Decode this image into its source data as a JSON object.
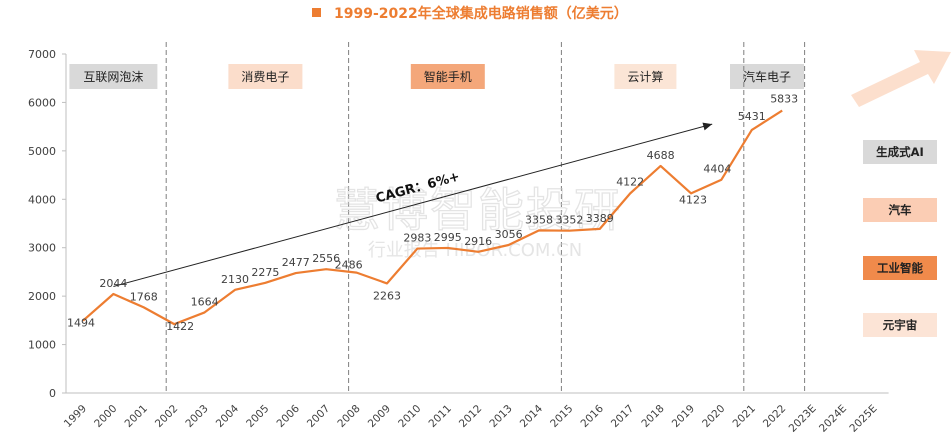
{
  "chart_data": {
    "type": "line",
    "title": "1999-2022年全球集成电路销售额（亿美元）",
    "x": [
      "1999",
      "2000",
      "2001",
      "2002",
      "2003",
      "2004",
      "2005",
      "2006",
      "2007",
      "2008",
      "2009",
      "2010",
      "2011",
      "2012",
      "2013",
      "2014",
      "2015",
      "2016",
      "2017",
      "2018",
      "2019",
      "2020",
      "2021",
      "2022",
      "2023E",
      "2024E",
      "2025E"
    ],
    "series": [
      {
        "name": "",
        "values": [
          1494,
          2044,
          1768,
          1422,
          1664,
          2130,
          2275,
          2477,
          2556,
          2486,
          2263,
          2983,
          2995,
          2916,
          3056,
          3358,
          3352,
          3389,
          4122,
          4688,
          4123,
          4404,
          5431,
          5833,
          null,
          null,
          null
        ],
        "labels": [
          "1494",
          "2044",
          "1768",
          "1422",
          "1664",
          "2130",
          "2275",
          "2477",
          "2556",
          "2486",
          "2263",
          "2983",
          "2995",
          "2916",
          "3056",
          "3358",
          "3352",
          "3389",
          "4122",
          "4688",
          "4123",
          "4404",
          "5431",
          "5833",
          "",
          "",
          ""
        ]
      }
    ],
    "ylim": [
      0,
      7000
    ],
    "yticks": [
      0,
      1000,
      2000,
      3000,
      4000,
      5000,
      6000,
      7000
    ],
    "grid": false,
    "line_color": "#ED7D31",
    "eras": [
      {
        "label": "互联网泡沫",
        "from": "1999",
        "to": "2001",
        "color": "#D9D9D9"
      },
      {
        "label": "消费电子",
        "from": "2003",
        "to": "2007",
        "color": "#FBDDCB"
      },
      {
        "label": "智能手机",
        "from": "2008",
        "to": "2014",
        "color": "#F4A77A"
      },
      {
        "label": "云计算",
        "from": "2015",
        "to": "2020",
        "color": "#FBE5D6"
      },
      {
        "label": "汽车电子",
        "from": "2021",
        "to": "2022",
        "color": "#D9D9D9"
      }
    ],
    "era_dividers": [
      "2002",
      "2008",
      "2015",
      "2021",
      "2023E"
    ],
    "future_boxes": [
      {
        "label": "生成式AI",
        "color": "#D9D9D9"
      },
      {
        "label": "汽车",
        "color": "#FBCDB4"
      },
      {
        "label": "工业智能",
        "color": "#F08A4B"
      },
      {
        "label": "元宇宙",
        "color": "#FCE4D6"
      }
    ],
    "annotation": {
      "text": "CAGR：6%+",
      "from_x": "2000",
      "from_y": 2200,
      "to_x": "2022",
      "to_y": 5800
    },
    "watermark": {
      "line1": "慧博智能投研",
      "line2": "行业报告 HIBOR.COM.CN"
    }
  }
}
